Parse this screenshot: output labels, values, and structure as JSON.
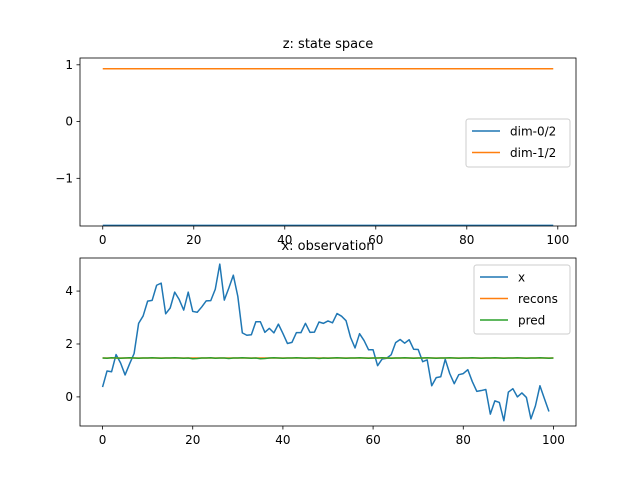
{
  "chart_data": [
    {
      "type": "line",
      "title": "z: state space",
      "xlabel": "",
      "ylabel": "",
      "xlim": [
        -5,
        104
      ],
      "ylim": [
        -1.84,
        1.12
      ],
      "xticks": [
        0,
        20,
        40,
        60,
        80,
        100
      ],
      "yticks": [
        1,
        0,
        -1
      ],
      "ytick_labels": [
        "1",
        "0",
        "−1"
      ],
      "grid": false,
      "legend": "center-right",
      "series": [
        {
          "name": "dim-0/2",
          "color": "#1f77b4",
          "x": [
            0,
            99
          ],
          "values": [
            -1.83,
            -1.83
          ]
        },
        {
          "name": "dim-1/2",
          "color": "#ff7f0e",
          "x": [
            0,
            99
          ],
          "values": [
            0.93,
            0.93
          ]
        }
      ]
    },
    {
      "type": "line",
      "title": "x: observation",
      "xlabel": "",
      "ylabel": "",
      "xlim": [
        -5,
        105
      ],
      "ylim": [
        -1.1,
        5.25
      ],
      "xticks": [
        0,
        20,
        40,
        60,
        80,
        100
      ],
      "yticks": [
        0,
        2,
        4
      ],
      "ytick_labels": [
        "0",
        "2",
        "4"
      ],
      "grid": false,
      "legend": "top-right",
      "series": [
        {
          "name": "x",
          "color": "#1f77b4",
          "x_start": 0,
          "values": [
            0.37,
            0.98,
            0.95,
            1.6,
            1.28,
            0.83,
            1.25,
            1.64,
            2.78,
            3.06,
            3.62,
            3.65,
            4.22,
            4.3,
            3.14,
            3.36,
            3.96,
            3.68,
            3.28,
            3.96,
            3.23,
            3.2,
            3.4,
            3.63,
            3.64,
            4.07,
            5.02,
            3.66,
            4.11,
            4.6,
            3.8,
            2.42,
            2.33,
            2.35,
            2.84,
            2.84,
            2.44,
            2.59,
            2.42,
            2.75,
            2.4,
            2.02,
            2.06,
            2.43,
            2.43,
            2.78,
            2.44,
            2.45,
            2.83,
            2.78,
            2.87,
            2.8,
            3.15,
            3.05,
            2.88,
            2.25,
            1.85,
            2.39,
            2.13,
            1.78,
            1.78,
            1.18,
            1.43,
            1.46,
            1.59,
            2.05,
            2.17,
            2.03,
            2.16,
            1.8,
            1.79,
            1.33,
            1.4,
            0.42,
            0.73,
            0.76,
            1.42,
            0.88,
            0.5,
            0.84,
            0.88,
            1.03,
            0.58,
            0.21,
            0.24,
            0.28,
            -0.65,
            -0.15,
            -0.21,
            -0.9,
            0.18,
            0.31,
            0.0,
            0.15,
            -0.02,
            -0.83,
            -0.34,
            0.42,
            -0.07,
            -0.55
          ]
        },
        {
          "name": "recons",
          "color": "#ff7f0e",
          "x": [
            0,
            100
          ],
          "values": [
            1.47,
            1.47
          ]
        },
        {
          "name": "pred",
          "color": "#2ca02c",
          "x_start": 0,
          "values": [
            1.47,
            1.46,
            1.48,
            1.47,
            1.46,
            1.47,
            1.48,
            1.47,
            1.46,
            1.47,
            1.47,
            1.48,
            1.47,
            1.46,
            1.47,
            1.47,
            1.48,
            1.47,
            1.46,
            1.47,
            1.44,
            1.45,
            1.47,
            1.47,
            1.48,
            1.46,
            1.47,
            1.47,
            1.45,
            1.47,
            1.47,
            1.48,
            1.47,
            1.46,
            1.47,
            1.44,
            1.45,
            1.47,
            1.48,
            1.47,
            1.46,
            1.47,
            1.47,
            1.48,
            1.47,
            1.46,
            1.47,
            1.47,
            1.45,
            1.47,
            1.46,
            1.47,
            1.48,
            1.47,
            1.46,
            1.47,
            1.47,
            1.48,
            1.47,
            1.46,
            1.47,
            1.47,
            1.48,
            1.47,
            1.46,
            1.47,
            1.47,
            1.48,
            1.47,
            1.46,
            1.47,
            1.47,
            1.48,
            1.47,
            1.46,
            1.47,
            1.47,
            1.48,
            1.47,
            1.46,
            1.47,
            1.47,
            1.48,
            1.47,
            1.46,
            1.47,
            1.47,
            1.48,
            1.47,
            1.46,
            1.47,
            1.47,
            1.48,
            1.47,
            1.46,
            1.47,
            1.47,
            1.48,
            1.47,
            1.46,
            1.47
          ]
        }
      ]
    }
  ]
}
